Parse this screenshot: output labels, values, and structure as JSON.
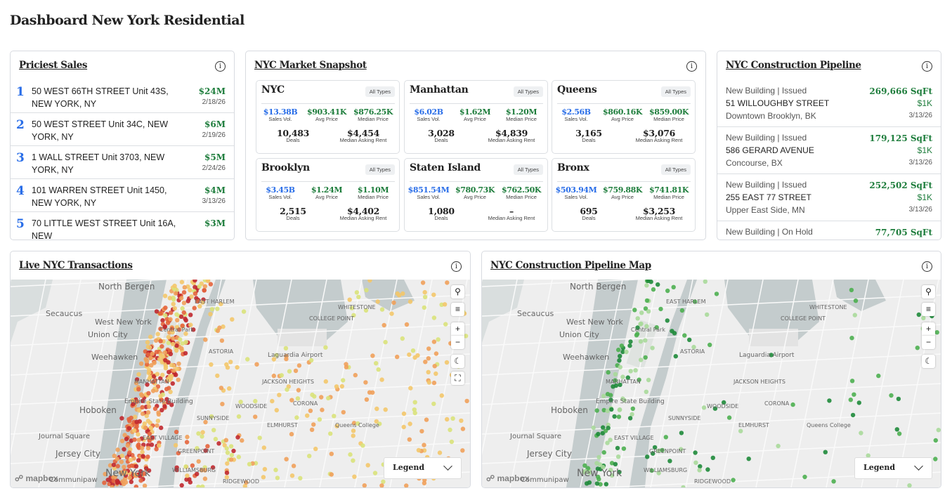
{
  "page_title": "Dashboard New York Residential",
  "priciest": {
    "title": "Priciest Sales",
    "items": [
      {
        "rank": "1",
        "address": "50 WEST 66TH STREET Unit 43S, NEW YORK, NY",
        "price": "$24M",
        "date": "2/18/26"
      },
      {
        "rank": "2",
        "address": "50 WEST STREET Unit 34C, NEW YORK, NY",
        "price": "$6M",
        "date": "2/19/26"
      },
      {
        "rank": "3",
        "address": "1 WALL STREET Unit 3703, NEW YORK, NY",
        "price": "$5M",
        "date": "2/24/26"
      },
      {
        "rank": "4",
        "address": "101 WARREN STREET Unit 1450, NEW YORK, NY",
        "price": "$4M",
        "date": "3/13/26"
      },
      {
        "rank": "5",
        "address": "70 LITTLE WEST STREET Unit 16A, NEW",
        "price": "$3M",
        "date": ""
      }
    ]
  },
  "snapshot": {
    "title": "NYC Market Snapshot",
    "labels": {
      "sales_vol": "Sales Vol.",
      "avg": "Avg Price",
      "median": "Median Price",
      "deals": "Deals",
      "rent": "Median Asking Rent"
    },
    "regions": [
      {
        "name": "NYC",
        "type": "All Types",
        "sales_vol": "$13.38B",
        "avg": "$903.41K",
        "median": "$876.25K",
        "deals": "10,483",
        "rent": "$4,454"
      },
      {
        "name": "Manhattan",
        "type": "All Types",
        "sales_vol": "$6.02B",
        "avg": "$1.62M",
        "median": "$1.20M",
        "deals": "3,028",
        "rent": "$4,839"
      },
      {
        "name": "Queens",
        "type": "All Types",
        "sales_vol": "$2.56B",
        "avg": "$860.16K",
        "median": "$859.00K",
        "deals": "3,165",
        "rent": "$3,076"
      },
      {
        "name": "Brooklyn",
        "type": "All Types",
        "sales_vol": "$3.45B",
        "avg": "$1.24M",
        "median": "$1.10M",
        "deals": "2,515",
        "rent": "$4,402"
      },
      {
        "name": "Staten Island",
        "type": "All Types",
        "sales_vol": "$851.54M",
        "avg": "$780.73K",
        "median": "$762.50K",
        "deals": "1,080",
        "rent": "–"
      },
      {
        "name": "Bronx",
        "type": "All Types",
        "sales_vol": "$503.94M",
        "avg": "$759.88K",
        "median": "$741.81K",
        "deals": "695",
        "rent": "$3,253"
      }
    ]
  },
  "pipeline": {
    "title": "NYC Construction Pipeline",
    "items": [
      {
        "type": "New Building | Issued",
        "address": "51 WILLOUGHBY STREET",
        "area": "Downtown Brooklyn, BK",
        "sqft": "269,666 SqFt",
        "cost": "$1K",
        "date": "3/13/26"
      },
      {
        "type": "New Building | Issued",
        "address": "586 GERARD AVENUE",
        "area": "Concourse, BX",
        "sqft": "179,125 SqFt",
        "cost": "$1K",
        "date": "3/13/26"
      },
      {
        "type": "New Building | Issued",
        "address": "255 EAST 77 STREET",
        "area": "Upper East Side, MN",
        "sqft": "252,502 SqFt",
        "cost": "$1K",
        "date": "3/13/26"
      },
      {
        "type": "New Building | On Hold",
        "address": "",
        "area": "",
        "sqft": "77,705 SqFt",
        "cost": "",
        "date": ""
      }
    ]
  },
  "live_map": {
    "title": "Live NYC Transactions",
    "legend": "Legend",
    "attribution": "mapbox"
  },
  "pipeline_map": {
    "title": "NYC Construction Pipeline Map",
    "legend": "Legend",
    "attribution": "mapbox"
  },
  "map_labels": [
    "North Bergen",
    "Secaucus",
    "West New York",
    "Union City",
    "Weehawken",
    "Hoboken",
    "Journal Square",
    "Jersey City",
    "New York",
    "EAST HARLEM",
    "MANHATTAN",
    "ASTORIA",
    "Laguardia Airport",
    "JACKSON HEIGHTS",
    "WOODSIDE",
    "SUNNYSIDE",
    "CORONA",
    "ELMHURST",
    "Queens College",
    "GREENPOINT",
    "WILLIAMSBURG",
    "RIDGEWOOD",
    "COLLEGE POINT",
    "WHITESTONE",
    "Central Park",
    "Empire State Building",
    "EAST VILLAGE",
    "Communipaw"
  ],
  "colors": {
    "accent_blue": "#2a6ee8",
    "value_green": "#1e7d3c",
    "live_dots": [
      "#c0282d",
      "#e4643c",
      "#f0a05a",
      "#f3c76a",
      "#d9e27a"
    ],
    "pipeline_dots": [
      "#1e8a3a",
      "#4caf50",
      "#a8d99a"
    ]
  }
}
